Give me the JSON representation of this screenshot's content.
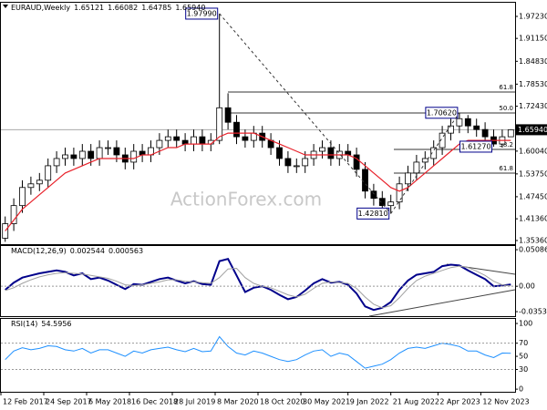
{
  "chart_data": [
    {
      "type": "candlestick",
      "title": "EURAUD,Weekly",
      "header_values": [
        {
          "value": 1.65121,
          "label": "1.65121"
        },
        {
          "value": 1.66082,
          "label": "1.66082"
        },
        {
          "value": 1.64785,
          "label": "1.64785"
        },
        {
          "value": 1.6594,
          "label": "1.65940"
        }
      ],
      "watermark": "ActionForex.com",
      "open": [
        1.36,
        1.4,
        1.45,
        1.5,
        1.51,
        1.52,
        1.56,
        1.58,
        1.59,
        1.58,
        1.6,
        1.58,
        1.61,
        1.61,
        1.59,
        1.57,
        1.6,
        1.59,
        1.61,
        1.63,
        1.64,
        1.63,
        1.62,
        1.64,
        1.62,
        1.63,
        1.72,
        1.68,
        1.64,
        1.63,
        1.65,
        1.63,
        1.61,
        1.58,
        1.56,
        1.56,
        1.58,
        1.6,
        1.61,
        1.58,
        1.6,
        1.59,
        1.55,
        1.49,
        1.47,
        1.45,
        1.46,
        1.51,
        1.54,
        1.57,
        1.58,
        1.61,
        1.65,
        1.67,
        1.69,
        1.67,
        1.66,
        1.64,
        1.62,
        1.64
      ],
      "high": [
        1.42,
        1.47,
        1.52,
        1.53,
        1.54,
        1.58,
        1.6,
        1.61,
        1.61,
        1.62,
        1.62,
        1.63,
        1.63,
        1.63,
        1.61,
        1.62,
        1.62,
        1.63,
        1.65,
        1.66,
        1.66,
        1.65,
        1.66,
        1.66,
        1.65,
        1.9799,
        1.76,
        1.7,
        1.66,
        1.67,
        1.67,
        1.65,
        1.63,
        1.6,
        1.58,
        1.6,
        1.62,
        1.63,
        1.63,
        1.62,
        1.62,
        1.61,
        1.57,
        1.51,
        1.49,
        1.48,
        1.53,
        1.56,
        1.59,
        1.6,
        1.63,
        1.67,
        1.69,
        1.7062,
        1.7,
        1.69,
        1.68,
        1.66,
        1.66,
        1.6608
      ],
      "low": [
        1.35,
        1.38,
        1.43,
        1.48,
        1.49,
        1.5,
        1.54,
        1.56,
        1.56,
        1.56,
        1.56,
        1.56,
        1.59,
        1.57,
        1.55,
        1.55,
        1.57,
        1.57,
        1.59,
        1.61,
        1.61,
        1.6,
        1.6,
        1.6,
        1.6,
        1.62,
        1.66,
        1.62,
        1.61,
        1.61,
        1.61,
        1.59,
        1.56,
        1.54,
        1.54,
        1.54,
        1.56,
        1.58,
        1.56,
        1.56,
        1.57,
        1.53,
        1.47,
        1.45,
        1.44,
        1.4281,
        1.44,
        1.49,
        1.52,
        1.55,
        1.56,
        1.59,
        1.63,
        1.65,
        1.65,
        1.64,
        1.62,
        1.6127,
        1.61,
        1.64
      ],
      "close": [
        1.4,
        1.45,
        1.5,
        1.51,
        1.52,
        1.56,
        1.58,
        1.59,
        1.58,
        1.6,
        1.58,
        1.61,
        1.61,
        1.59,
        1.57,
        1.6,
        1.59,
        1.61,
        1.63,
        1.64,
        1.63,
        1.62,
        1.64,
        1.62,
        1.63,
        1.72,
        1.68,
        1.64,
        1.63,
        1.65,
        1.63,
        1.61,
        1.58,
        1.56,
        1.56,
        1.58,
        1.6,
        1.61,
        1.58,
        1.6,
        1.59,
        1.55,
        1.49,
        1.47,
        1.45,
        1.46,
        1.51,
        1.54,
        1.57,
        1.58,
        1.61,
        1.65,
        1.67,
        1.69,
        1.67,
        1.66,
        1.64,
        1.62,
        1.64,
        1.6594
      ],
      "series": [
        {
          "color": "#e8212a",
          "values": [
            1.38,
            1.41,
            1.44,
            1.46,
            1.48,
            1.5,
            1.52,
            1.54,
            1.55,
            1.56,
            1.57,
            1.58,
            1.58,
            1.58,
            1.58,
            1.58,
            1.59,
            1.59,
            1.6,
            1.61,
            1.61,
            1.62,
            1.62,
            1.62,
            1.62,
            1.64,
            1.65,
            1.65,
            1.65,
            1.65,
            1.64,
            1.63,
            1.62,
            1.61,
            1.6,
            1.59,
            1.59,
            1.59,
            1.59,
            1.59,
            1.59,
            1.58,
            1.56,
            1.54,
            1.52,
            1.5,
            1.49,
            1.5,
            1.52,
            1.54,
            1.56,
            1.58,
            1.6,
            1.62,
            1.63,
            1.63,
            1.63,
            1.63,
            1.63,
            1.63
          ]
        }
      ],
      "annotations": [
        {
          "value": 1.9799,
          "label": "1.97990"
        },
        {
          "value": 1.7062,
          "label": "1.70620"
        },
        {
          "value": 1.6127,
          "label": "1.61270"
        },
        {
          "value": 1.4281,
          "label": "1.42810"
        }
      ],
      "levels": [
        {
          "label": "61.8",
          "value": 1.7635
        },
        {
          "label": "50.0",
          "value": 1.7057
        },
        {
          "label": "38.2",
          "value": 1.605
        },
        {
          "label": "61.8",
          "value": 1.5397
        }
      ],
      "last_price": {
        "value": 1.6594,
        "label": "1.65940"
      },
      "xlim": [
        0,
        60
      ],
      "xticks": [
        {
          "value": 0,
          "label": "12 Feb 2017"
        },
        {
          "value": 5,
          "label": "24 Sep 2017"
        },
        {
          "value": 10,
          "label": "6 May 2018"
        },
        {
          "value": 15,
          "label": "16 Dec 2018"
        },
        {
          "value": 20,
          "label": "28 Jul 2019"
        },
        {
          "value": 25,
          "label": "8 Mar 2020"
        },
        {
          "value": 30,
          "label": "18 Oct 2020"
        },
        {
          "value": 35,
          "label": "30 May 2021"
        },
        {
          "value": 40.5,
          "label": "9 Jan 2022"
        },
        {
          "value": 45.5,
          "label": "21 Aug 2022"
        },
        {
          "value": 51,
          "label": "2 Apr 2023"
        },
        {
          "value": 56,
          "label": "12 Nov 2023"
        }
      ],
      "ylim": [
        1.3435,
        2.01
      ],
      "yticks": [
        {
          "value": 1.9723,
          "label": "1.97230"
        },
        {
          "value": 1.9115,
          "label": "1.91150"
        },
        {
          "value": 1.8483,
          "label": "1.84830"
        },
        {
          "value": 1.7853,
          "label": "1.78530"
        },
        {
          "value": 1.7243,
          "label": "1.72430"
        },
        {
          "value": 1.6004,
          "label": "1.60040"
        },
        {
          "value": 1.5375,
          "label": "1.53750"
        },
        {
          "value": 1.4745,
          "label": "1.47450"
        },
        {
          "value": 1.4136,
          "label": "1.41360"
        },
        {
          "value": 1.3536,
          "label": "1.35360"
        }
      ]
    },
    {
      "type": "line",
      "title": "MACD(12,26,9)",
      "header_values": [
        0.002544,
        0.000563
      ],
      "series": [
        {
          "color": "#00008b",
          "values": [
            -0.005,
            0.005,
            0.012,
            0.015,
            0.018,
            0.02,
            0.022,
            0.02,
            0.015,
            0.018,
            0.01,
            0.012,
            0.008,
            0.002,
            -0.004,
            0.003,
            0.002,
            0.006,
            0.01,
            0.012,
            0.008,
            0.004,
            0.007,
            0.003,
            0.002,
            0.035,
            0.038,
            0.015,
            -0.008,
            -0.002,
            0.0,
            -0.005,
            -0.012,
            -0.018,
            -0.015,
            -0.006,
            0.004,
            0.01,
            0.005,
            0.006,
            0.002,
            -0.01,
            -0.028,
            -0.033,
            -0.03,
            -0.022,
            -0.005,
            0.008,
            0.016,
            0.018,
            0.02,
            0.028,
            0.03,
            0.029,
            0.022,
            0.016,
            0.01,
            0.0,
            0.001,
            0.002544
          ]
        },
        {
          "color": "#a0a0a0",
          "values": [
            -0.006,
            -0.002,
            0.004,
            0.009,
            0.013,
            0.016,
            0.018,
            0.019,
            0.018,
            0.017,
            0.015,
            0.013,
            0.011,
            0.007,
            0.002,
            0.001,
            0.002,
            0.004,
            0.006,
            0.009,
            0.009,
            0.007,
            0.006,
            0.005,
            0.004,
            0.012,
            0.024,
            0.025,
            0.012,
            0.004,
            0.0,
            -0.002,
            -0.007,
            -0.012,
            -0.015,
            -0.011,
            -0.003,
            0.004,
            0.006,
            0.005,
            0.004,
            -0.003,
            -0.015,
            -0.025,
            -0.03,
            -0.027,
            -0.016,
            -0.003,
            0.008,
            0.014,
            0.018,
            0.022,
            0.026,
            0.028,
            0.026,
            0.021,
            0.015,
            0.007,
            0.002,
            0.000563
          ]
        }
      ],
      "ylim": [
        -0.0416,
        0.056
      ],
      "yticks": [
        0.050863,
        {
          "value": 0,
          "label": "0.00"
        },
        -0.035322
      ]
    },
    {
      "type": "line",
      "title": "RSI(14)",
      "header_values": [
        54.5956
      ],
      "series": [
        {
          "color": "#1e90ff",
          "values": [
            45,
            58,
            63,
            60,
            62,
            66,
            65,
            60,
            58,
            62,
            55,
            60,
            60,
            55,
            50,
            58,
            55,
            60,
            62,
            64,
            60,
            57,
            62,
            57,
            58,
            80,
            65,
            55,
            52,
            58,
            55,
            50,
            45,
            42,
            45,
            52,
            58,
            60,
            50,
            55,
            52,
            42,
            32,
            35,
            38,
            45,
            55,
            62,
            64,
            62,
            66,
            70,
            68,
            65,
            58,
            58,
            52,
            48,
            55,
            54.5956
          ]
        }
      ],
      "ylim": [
        -4,
        107
      ],
      "yticks": [
        100,
        70,
        50,
        30,
        0
      ]
    }
  ]
}
